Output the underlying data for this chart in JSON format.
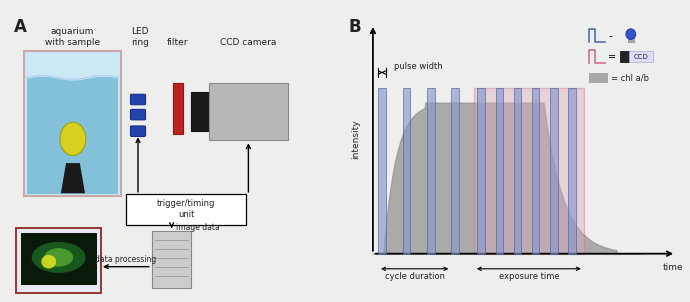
{
  "bg_color": "#eeeeec",
  "panel_a_label": "A",
  "panel_b_label": "B",
  "text_color": "#222222",
  "aquarium_border_color": "#c8a8a8",
  "aquarium_fill": "#cce8f4",
  "water_color": "#7bbcd8",
  "plant_yellow": "#d8d020",
  "plant_stand": "#1a1a1a",
  "led_color": "#2244aa",
  "filter_color": "#bb2222",
  "ccd_body": "#b8b8b8",
  "ccd_lens": "#1a1a1a",
  "trigger_fill": "#ffffff",
  "monitor_border": "#993333",
  "monitor_screen_dark": "#1a6020",
  "monitor_screen_mid": "#50a030",
  "monitor_screen_bright": "#d8e020",
  "computer_fill": "#cccccc",
  "pulse_blue_fill": "#8899cc",
  "pulse_blue_edge": "#4466aa",
  "pulse_pink_fill": "#ddaabb",
  "pulse_pink_edge": "#cc6688",
  "bell_color": "#909090",
  "labels": {
    "aquarium": "aquarium\nwith sample",
    "led": "LED\nring",
    "filter": "filter",
    "ccd": "CCD camera",
    "trigger": "trigger/timing\nunit",
    "data_proc": "data processing",
    "image_data": "image data",
    "pulse_width": "pulse width",
    "cycle_duration": "cycle duration",
    "exposure_time": "exposure time",
    "time_axis": "time",
    "intensity_axis": "intensity",
    "chl_legend": "= chl a/b"
  }
}
